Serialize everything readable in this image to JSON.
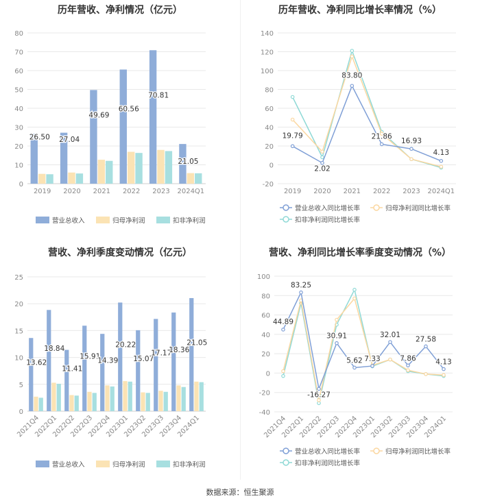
{
  "footer": "数据来源：恒生聚源",
  "colors": {
    "revenue": "#8fadd9",
    "net_profit": "#fbe3b4",
    "deducted_profit": "#a7dfe0",
    "revenue_line": "#7f9fd6",
    "net_line": "#fbd7a0",
    "deducted_line": "#8fd9d6"
  },
  "chart_data": [
    {
      "type": "bar",
      "title": "历年营收、净利情况（亿元）",
      "categories": [
        "2019",
        "2020",
        "2021",
        "2022",
        "2023",
        "2024Q1"
      ],
      "series": [
        {
          "name": "营业总收入",
          "values": [
            26.5,
            27.04,
            49.69,
            60.56,
            70.81,
            21.05
          ]
        },
        {
          "name": "归母净利润",
          "values": [
            5.2,
            5.9,
            12.7,
            16.9,
            17.9,
            5.6
          ]
        },
        {
          "name": "扣非净利润",
          "values": [
            5.0,
            5.4,
            12.1,
            16.3,
            17.3,
            5.5
          ]
        }
      ],
      "data_labels": [
        "26.50",
        "27.04",
        "49.69",
        "60.56",
        "70.81",
        "21.05"
      ],
      "ylim": [
        0,
        80
      ],
      "yticks": [
        0,
        10,
        20,
        30,
        40,
        50,
        60,
        70,
        80
      ],
      "grid": true,
      "legend": "bottom"
    },
    {
      "type": "line",
      "title": "历年营收、净利同比增长率情况（%）",
      "categories": [
        "2019",
        "2020",
        "2021",
        "2022",
        "2023",
        "2024Q1"
      ],
      "series": [
        {
          "name": "营业总收入同比增长率",
          "values": [
            19.79,
            2.02,
            83.8,
            21.86,
            16.93,
            4.13
          ]
        },
        {
          "name": "归母净利润同比增长率",
          "values": [
            48,
            14,
            115,
            33,
            6,
            -2
          ]
        },
        {
          "name": "扣非净利润同比增长率",
          "values": [
            72,
            8,
            121,
            35,
            6,
            -3
          ]
        }
      ],
      "data_labels": [
        "19.79",
        "2.02",
        "83.80",
        "21.86",
        "16.93",
        "4.13"
      ],
      "ylim": [
        -20,
        140
      ],
      "yticks": [
        -20,
        0,
        20,
        40,
        60,
        80,
        100,
        120,
        140
      ],
      "grid": true,
      "legend": "bottom"
    },
    {
      "type": "bar",
      "title": "营收、净利季度变动情况（亿元）",
      "categories": [
        "2021Q4",
        "2022Q1",
        "2022Q2",
        "2022Q3",
        "2022Q4",
        "2023Q1",
        "2023Q2",
        "2023Q3",
        "2023Q4",
        "2024Q1"
      ],
      "series": [
        {
          "name": "营业总收入",
          "values": [
            13.62,
            18.84,
            11.41,
            15.91,
            14.39,
            20.22,
            15.07,
            17.17,
            18.36,
            21.05
          ]
        },
        {
          "name": "归母净利润",
          "values": [
            2.7,
            5.3,
            3.0,
            3.6,
            4.8,
            5.6,
            3.5,
            3.8,
            4.8,
            5.5
          ]
        },
        {
          "name": "扣非净利润",
          "values": [
            2.5,
            5.1,
            2.9,
            3.4,
            4.6,
            5.5,
            3.4,
            3.6,
            4.5,
            5.4
          ]
        }
      ],
      "data_labels": [
        "13.62",
        "18.84",
        "11.41",
        "15.91",
        "14.39",
        "20.22",
        "15.07",
        "17.17",
        "18.36",
        "21.05"
      ],
      "ylim": [
        0,
        25
      ],
      "yticks": [
        0,
        5,
        10,
        15,
        20,
        25
      ],
      "grid": true,
      "legend": "bottom"
    },
    {
      "type": "line",
      "title": "营收、净利同比增长率季度变动情况（%）",
      "categories": [
        "2021Q4",
        "2022Q1",
        "2022Q2",
        "2022Q3",
        "2022Q4",
        "2023Q1",
        "2023Q2",
        "2023Q3",
        "2023Q4",
        "2024Q1"
      ],
      "series": [
        {
          "name": "营业总收入同比增长率",
          "values": [
            44.89,
            83.25,
            -16.27,
            30.91,
            5.62,
            7.33,
            32.01,
            7.86,
            27.58,
            4.13
          ]
        },
        {
          "name": "归母净利润同比增长率",
          "values": [
            2,
            75,
            -28,
            55,
            77,
            8,
            14,
            3,
            -1,
            -2
          ]
        },
        {
          "name": "扣非净利润同比增长率",
          "values": [
            -3,
            72,
            -31,
            50,
            86,
            7,
            14,
            2,
            -1,
            -3
          ]
        }
      ],
      "data_labels": [
        "44.89",
        "83.25",
        "-16.27",
        "30.91",
        "5.62",
        "7.33",
        "32.01",
        "7.86",
        "27.58",
        "4.13"
      ],
      "ylim": [
        -40,
        100
      ],
      "yticks": [
        -40,
        -20,
        0,
        20,
        40,
        60,
        80,
        100
      ],
      "grid": true,
      "legend": "bottom"
    }
  ]
}
